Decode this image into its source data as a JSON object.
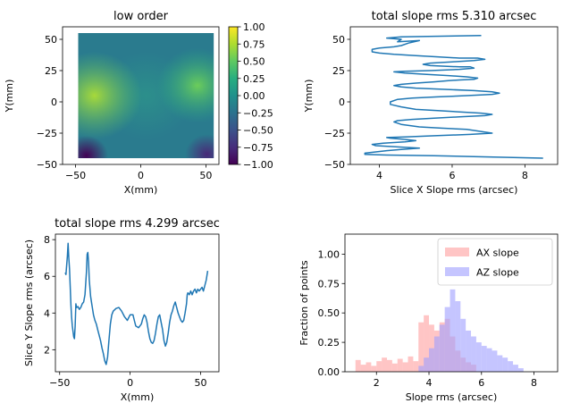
{
  "chart_data": [
    {
      "type": "heatmap",
      "title": "low order",
      "xlabel": "X(mm)",
      "ylabel": "Y(mm)",
      "xlim": [
        -60,
        60
      ],
      "ylim": [
        -50,
        60
      ],
      "data_extent": {
        "x": [
          -48,
          56
        ],
        "y": [
          -45,
          55
        ]
      },
      "x_ticks": [
        -50,
        0,
        50
      ],
      "y_ticks": [
        -50,
        -25,
        0,
        25,
        50
      ],
      "colorbar": {
        "colormap": "viridis",
        "range": [
          -1.0,
          1.0
        ],
        "ticks": [
          -1.0,
          -0.75,
          -0.5,
          -0.25,
          0.0,
          0.25,
          0.5,
          0.75,
          1.0
        ],
        "tick_labels": [
          "−1.00",
          "−0.75",
          "−0.50",
          "−0.25",
          "0.00",
          "0.25",
          "0.50",
          "0.75",
          "1.00"
        ]
      },
      "grid": false
    },
    {
      "type": "line",
      "title": "total slope rms  5.310 arcsec",
      "xlabel": "Slice X Slope rms (arcsec)",
      "ylabel": "Y(mm)",
      "xlim": [
        3.2,
        8.9
      ],
      "ylim": [
        -50,
        60
      ],
      "x_ticks": [
        4,
        6,
        8
      ],
      "y_ticks": [
        -50,
        -25,
        0,
        25,
        50
      ],
      "color": "#1f77b4",
      "series": [
        {
          "points": [
            [
              6.8,
              53
            ],
            [
              4.6,
              52
            ],
            [
              4.2,
              51
            ],
            [
              4.6,
              50
            ],
            [
              4.5,
              48
            ],
            [
              5.1,
              49
            ],
            [
              4.8,
              47
            ],
            [
              4.6,
              45
            ],
            [
              4.4,
              44
            ],
            [
              4.0,
              43
            ],
            [
              3.8,
              42
            ],
            [
              3.8,
              40
            ],
            [
              4.0,
              39
            ],
            [
              4.4,
              38
            ],
            [
              5.0,
              37
            ],
            [
              5.6,
              36
            ],
            [
              6.2,
              35
            ],
            [
              6.7,
              35
            ],
            [
              6.9,
              34
            ],
            [
              6.6,
              33
            ],
            [
              6.0,
              32
            ],
            [
              5.4,
              31
            ],
            [
              5.2,
              30
            ],
            [
              5.4,
              29
            ],
            [
              5.8,
              28.5
            ],
            [
              6.2,
              28
            ],
            [
              6.5,
              28
            ],
            [
              6.6,
              27
            ],
            [
              6.2,
              26
            ],
            [
              5.4,
              25
            ],
            [
              4.7,
              24.5
            ],
            [
              4.4,
              24
            ],
            [
              4.7,
              23
            ],
            [
              5.3,
              22
            ],
            [
              5.9,
              21
            ],
            [
              6.4,
              20
            ],
            [
              6.7,
              19
            ],
            [
              6.6,
              18
            ],
            [
              6.2,
              17.5
            ],
            [
              5.9,
              17
            ],
            [
              5.5,
              16
            ],
            [
              5.0,
              15
            ],
            [
              4.6,
              14
            ],
            [
              4.4,
              13
            ],
            [
              4.6,
              12
            ],
            [
              5.0,
              11
            ],
            [
              5.8,
              10
            ],
            [
              6.6,
              9
            ],
            [
              7.1,
              8
            ],
            [
              7.3,
              7
            ],
            [
              7.1,
              6
            ],
            [
              6.4,
              5
            ],
            [
              5.6,
              4
            ],
            [
              4.9,
              3
            ],
            [
              4.5,
              2
            ],
            [
              4.3,
              0
            ],
            [
              4.3,
              -2
            ],
            [
              4.6,
              -4
            ],
            [
              5.0,
              -6
            ],
            [
              5.6,
              -7
            ],
            [
              6.2,
              -8
            ],
            [
              6.8,
              -9
            ],
            [
              7.1,
              -10
            ],
            [
              6.9,
              -11
            ],
            [
              6.2,
              -12
            ],
            [
              5.5,
              -13
            ],
            [
              4.9,
              -14
            ],
            [
              4.5,
              -15
            ],
            [
              4.4,
              -16
            ],
            [
              4.6,
              -18
            ],
            [
              5.1,
              -20
            ],
            [
              5.7,
              -21
            ],
            [
              6.4,
              -22
            ],
            [
              7.1,
              -25
            ],
            [
              6.5,
              -26
            ],
            [
              5.6,
              -27
            ],
            [
              4.7,
              -28
            ],
            [
              4.2,
              -28.5
            ],
            [
              4.3,
              -29
            ],
            [
              4.7,
              -30
            ],
            [
              5.0,
              -31
            ],
            [
              4.7,
              -32
            ],
            [
              4.1,
              -33
            ],
            [
              3.8,
              -34
            ],
            [
              3.9,
              -35
            ],
            [
              4.5,
              -36
            ],
            [
              5.1,
              -37
            ],
            [
              4.6,
              -38
            ],
            [
              4.2,
              -39
            ],
            [
              3.9,
              -40
            ],
            [
              3.6,
              -41
            ],
            [
              3.6,
              -42
            ],
            [
              4.2,
              -42.5
            ],
            [
              5.5,
              -43
            ],
            [
              7.0,
              -44
            ],
            [
              8.5,
              -45
            ]
          ]
        }
      ],
      "grid": false
    },
    {
      "type": "line",
      "title": "total slope rms  4.299 arcsec",
      "xlabel": "X(mm)",
      "ylabel": "Slice Y Slope rms (arcsec)",
      "xlim": [
        -53,
        63
      ],
      "ylim": [
        0.8,
        8.3
      ],
      "x_ticks": [
        -50,
        0,
        50
      ],
      "y_ticks": [
        2,
        4,
        6,
        8
      ],
      "color": "#1f77b4",
      "series": [
        {
          "points": [
            [
              -46,
              6.2
            ],
            [
              -45.5,
              6.1
            ],
            [
              -45,
              6.6
            ],
            [
              -44.5,
              7.1
            ],
            [
              -44,
              7.8
            ],
            [
              -43.5,
              7.0
            ],
            [
              -43,
              6.4
            ],
            [
              -42.5,
              5.4
            ],
            [
              -42,
              4.4
            ],
            [
              -41.5,
              3.8
            ],
            [
              -41,
              3.3
            ],
            [
              -40.5,
              3.0
            ],
            [
              -40,
              2.7
            ],
            [
              -39.5,
              2.6
            ],
            [
              -39,
              3.3
            ],
            [
              -38.5,
              4.5
            ],
            [
              -38,
              4.3
            ],
            [
              -37,
              4.35
            ],
            [
              -36,
              4.2
            ],
            [
              -35,
              4.3
            ],
            [
              -34,
              4.5
            ],
            [
              -33,
              4.6
            ],
            [
              -32,
              5.0
            ],
            [
              -31,
              6.2
            ],
            [
              -30.5,
              7.2
            ],
            [
              -30,
              7.3
            ],
            [
              -29.5,
              6.8
            ],
            [
              -29,
              5.8
            ],
            [
              -28,
              4.9
            ],
            [
              -27,
              4.4
            ],
            [
              -26,
              3.9
            ],
            [
              -25,
              3.6
            ],
            [
              -24,
              3.4
            ],
            [
              -23,
              3.1
            ],
            [
              -22,
              2.8
            ],
            [
              -21,
              2.5
            ],
            [
              -20,
              2.1
            ],
            [
              -19,
              1.8
            ],
            [
              -18,
              1.4
            ],
            [
              -17,
              1.2
            ],
            [
              -16,
              1.6
            ],
            [
              -15,
              2.5
            ],
            [
              -14,
              3.4
            ],
            [
              -13,
              3.9
            ],
            [
              -12,
              4.1
            ],
            [
              -10,
              4.25
            ],
            [
              -8,
              4.3
            ],
            [
              -6,
              4.1
            ],
            [
              -4,
              3.8
            ],
            [
              -2,
              3.6
            ],
            [
              0,
              3.9
            ],
            [
              2,
              3.9
            ],
            [
              3,
              3.6
            ],
            [
              4,
              3.3
            ],
            [
              6,
              3.2
            ],
            [
              8,
              3.4
            ],
            [
              9,
              3.7
            ],
            [
              10,
              3.9
            ],
            [
              11,
              3.8
            ],
            [
              12,
              3.5
            ],
            [
              13,
              3.0
            ],
            [
              14,
              2.6
            ],
            [
              15,
              2.4
            ],
            [
              16,
              2.35
            ],
            [
              17,
              2.5
            ],
            [
              18,
              2.9
            ],
            [
              19,
              3.4
            ],
            [
              20,
              3.8
            ],
            [
              21,
              3.9
            ],
            [
              22,
              3.5
            ],
            [
              23,
              3.1
            ],
            [
              24,
              2.5
            ],
            [
              25,
              2.2
            ],
            [
              26,
              2.4
            ],
            [
              27,
              2.9
            ],
            [
              28,
              3.5
            ],
            [
              29,
              3.9
            ],
            [
              30,
              4.1
            ],
            [
              31,
              4.4
            ],
            [
              32,
              4.6
            ],
            [
              33,
              4.3
            ],
            [
              34,
              4.0
            ],
            [
              35,
              3.8
            ],
            [
              36,
              3.6
            ],
            [
              37,
              3.5
            ],
            [
              38,
              3.6
            ],
            [
              39,
              4.0
            ],
            [
              40,
              4.5
            ],
            [
              40.5,
              5.0
            ],
            [
              41,
              5.1
            ],
            [
              42,
              5.0
            ],
            [
              43,
              5.2
            ],
            [
              44,
              5.0
            ],
            [
              45,
              5.2
            ],
            [
              46,
              5.3
            ],
            [
              47,
              5.1
            ],
            [
              48,
              5.3
            ],
            [
              49,
              5.2
            ],
            [
              50,
              5.3
            ],
            [
              51,
              5.4
            ],
            [
              52,
              5.2
            ],
            [
              53,
              5.5
            ],
            [
              54,
              5.8
            ],
            [
              55,
              6.3
            ]
          ]
        }
      ],
      "grid": false
    },
    {
      "type": "bar",
      "xlabel": "Slope rms (arcsec)",
      "ylabel": "Fraction of points",
      "xlim": [
        0.8,
        8.9
      ],
      "ylim": [
        0,
        1.17
      ],
      "x_ticks": [
        2,
        4,
        6,
        8
      ],
      "y_ticks": [
        0.0,
        0.25,
        0.5,
        0.75,
        1.0
      ],
      "y_tick_labels": [
        "0.00",
        "0.25",
        "0.50",
        "0.75",
        "1.00"
      ],
      "legend_position": "top-right",
      "series": [
        {
          "name": "AX slope",
          "color": "#ff9f9f",
          "bins": [
            [
              1.2,
              0.1
            ],
            [
              1.4,
              0.06
            ],
            [
              1.6,
              0.08
            ],
            [
              1.8,
              0.05
            ],
            [
              2.0,
              0.09
            ],
            [
              2.2,
              0.12
            ],
            [
              2.4,
              0.1
            ],
            [
              2.6,
              0.07
            ],
            [
              2.8,
              0.11
            ],
            [
              3.0,
              0.08
            ],
            [
              3.2,
              0.13
            ],
            [
              3.4,
              0.09
            ],
            [
              3.6,
              0.42
            ],
            [
              3.8,
              0.48
            ],
            [
              4.0,
              0.4
            ],
            [
              4.2,
              0.35
            ],
            [
              4.4,
              0.42
            ],
            [
              4.6,
              0.45
            ],
            [
              4.8,
              0.3
            ],
            [
              5.0,
              0.18
            ],
            [
              5.2,
              0.12
            ],
            [
              5.4,
              0.08
            ],
            [
              5.6,
              0.06
            ]
          ]
        },
        {
          "name": "AZ slope",
          "color": "#9f9fff",
          "bins": [
            [
              3.6,
              0.05
            ],
            [
              3.8,
              0.12
            ],
            [
              4.0,
              0.2
            ],
            [
              4.2,
              0.3
            ],
            [
              4.4,
              0.4
            ],
            [
              4.6,
              0.55
            ],
            [
              4.8,
              0.7
            ],
            [
              5.0,
              0.6
            ],
            [
              5.2,
              0.45
            ],
            [
              5.4,
              0.35
            ],
            [
              5.6,
              0.3
            ],
            [
              5.8,
              0.25
            ],
            [
              6.0,
              0.22
            ],
            [
              6.2,
              0.2
            ],
            [
              6.4,
              0.18
            ],
            [
              6.6,
              0.14
            ],
            [
              6.8,
              0.12
            ],
            [
              7.0,
              0.09
            ],
            [
              7.2,
              0.06
            ],
            [
              7.4,
              0.03
            ]
          ]
        }
      ],
      "grid": false
    }
  ]
}
